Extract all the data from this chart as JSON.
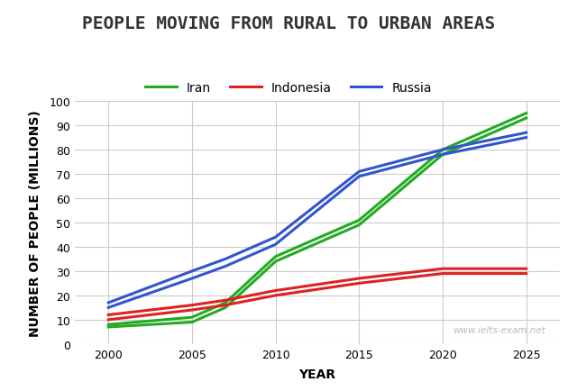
{
  "title": "PEOPLE MOVING FROM RURAL TO URBAN AREAS",
  "xlabel": "YEAR",
  "ylabel": "NUMBER OF PEOPLE (MILLIONS)",
  "watermark": "www.ielts-exam.net",
  "years": [
    2000,
    2005,
    2007,
    2010,
    2015,
    2020,
    2025
  ],
  "iran_upper": [
    8,
    11,
    17,
    36,
    51,
    80,
    95
  ],
  "iran_lower": [
    7,
    9,
    15,
    34,
    49,
    78,
    93
  ],
  "indonesia_upper": [
    12,
    16,
    18,
    22,
    27,
    31,
    31
  ],
  "indonesia_lower": [
    10,
    14,
    16,
    20,
    25,
    29,
    29
  ],
  "russia_upper": [
    17,
    30,
    35,
    44,
    71,
    80,
    87
  ],
  "russia_lower": [
    15,
    27,
    32,
    41,
    69,
    78,
    85
  ],
  "iran_color": "#22aa22",
  "indonesia_color": "#dd2222",
  "russia_color": "#3355cc",
  "background_color": "#ffffff",
  "grid_color": "#cccccc",
  "ylim": [
    0,
    100
  ],
  "yticks": [
    0,
    10,
    20,
    30,
    40,
    50,
    60,
    70,
    80,
    90,
    100
  ],
  "xticks": [
    2000,
    2005,
    2010,
    2015,
    2020,
    2025
  ],
  "title_fontsize": 14,
  "axis_label_fontsize": 10,
  "tick_fontsize": 9,
  "legend_fontsize": 10,
  "linewidth": 2.2
}
